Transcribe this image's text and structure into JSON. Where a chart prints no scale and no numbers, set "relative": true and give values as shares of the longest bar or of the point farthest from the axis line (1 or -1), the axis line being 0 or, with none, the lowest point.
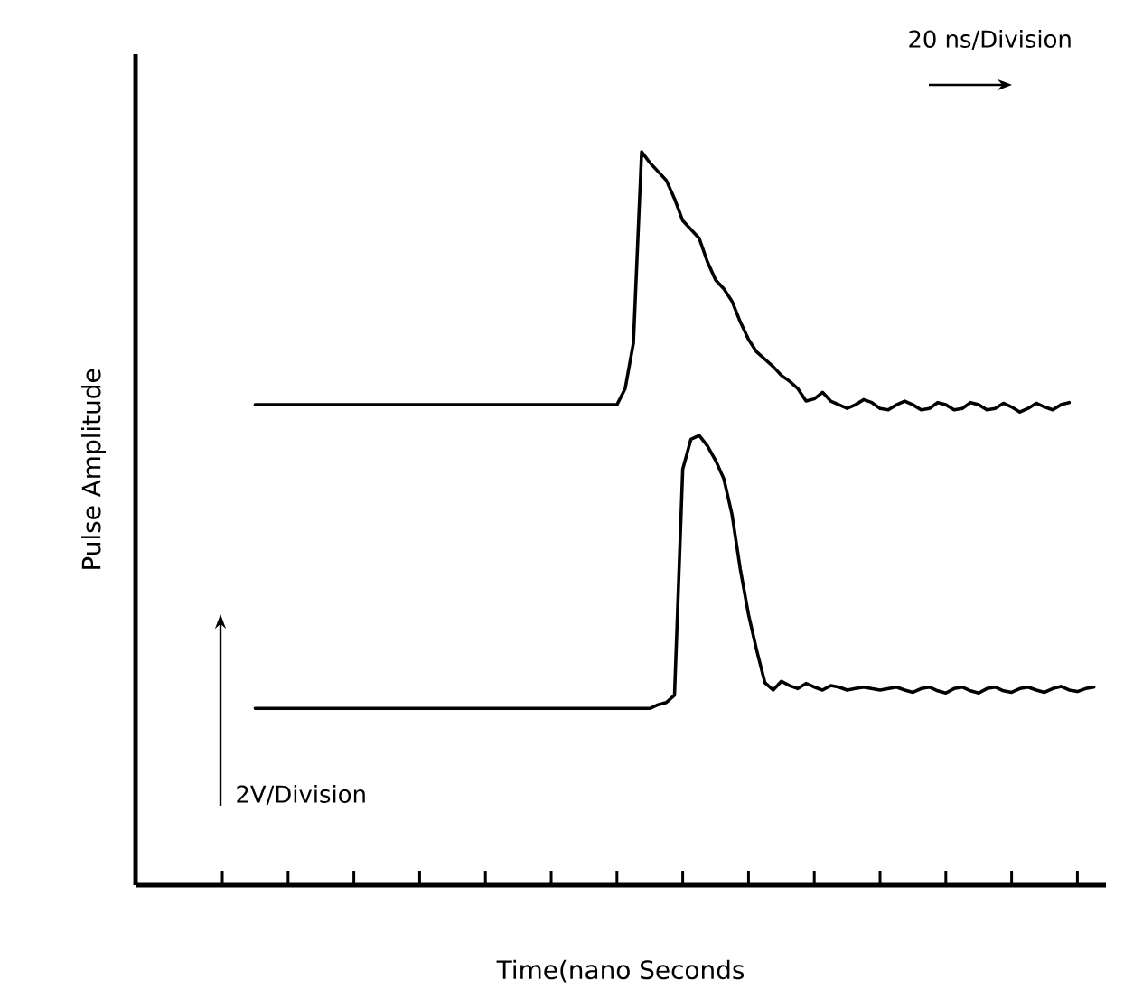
{
  "chart_data": {
    "type": "line",
    "relative": true,
    "xlabel": "Time(nano Seconds",
    "ylabel": "Pulse Amplitude",
    "annotations": [
      "20 ns/Division",
      "2V/Division"
    ],
    "marker": "none",
    "line_style": "solid",
    "categories": [
      null,
      null,
      null,
      null,
      null,
      null,
      null,
      null,
      null,
      null,
      null,
      null,
      null,
      null,
      null,
      null,
      null,
      null,
      null,
      null,
      null,
      null,
      null,
      null,
      null,
      null,
      null,
      null,
      null,
      null,
      null,
      null,
      null,
      null,
      null,
      null,
      null,
      null,
      null,
      null,
      null,
      null,
      null,
      null,
      null,
      null,
      null,
      null,
      null,
      null,
      null,
      null,
      null,
      null,
      null,
      null,
      null,
      null,
      null,
      null,
      null,
      null,
      null,
      null,
      null,
      null,
      null,
      null,
      null,
      null,
      null,
      null,
      null,
      null,
      null,
      null,
      null,
      null,
      null,
      null,
      null,
      null,
      null,
      null,
      null,
      null,
      null,
      null,
      null,
      null,
      null,
      null,
      null,
      null,
      null,
      null,
      null,
      null,
      null,
      null,
      null,
      null,
      null,
      null,
      null,
      null,
      null
    ],
    "series": [
      {
        "color": "#000000",
        "values": [
          null,
          null,
          null,
          null,
          0.655,
          0.655,
          0.655,
          0.655,
          0.655,
          0.655,
          0.655,
          0.655,
          0.655,
          0.655,
          0.655,
          0.655,
          0.655,
          0.655,
          0.655,
          0.655,
          0.655,
          0.655,
          0.655,
          0.655,
          0.655,
          0.655,
          0.655,
          0.655,
          0.655,
          0.655,
          0.655,
          0.655,
          0.655,
          0.655,
          0.655,
          0.655,
          0.655,
          0.655,
          0.655,
          0.655,
          0.655,
          0.655,
          0.655,
          0.655,
          0.655,
          0.655,
          0.655,
          0.655,
          0.655,
          0.677,
          0.739,
          1.0,
          0.985,
          0.973,
          0.961,
          0.936,
          0.906,
          0.894,
          0.882,
          0.85,
          0.825,
          0.813,
          0.796,
          0.768,
          0.744,
          0.727,
          0.717,
          0.707,
          0.695,
          0.687,
          0.677,
          0.66,
          0.663,
          0.672,
          0.66,
          0.655,
          0.65,
          0.655,
          0.662,
          0.658,
          0.65,
          0.648,
          0.655,
          0.66,
          0.655,
          0.648,
          0.65,
          0.658,
          0.655,
          0.648,
          0.65,
          0.658,
          0.655,
          0.648,
          0.65,
          0.657,
          0.652,
          0.645,
          0.65,
          0.657,
          0.652,
          0.648,
          0.655,
          0.658,
          null,
          null,
          null
        ]
      },
      {
        "color": "#000000",
        "values": [
          null,
          null,
          null,
          null,
          0.241,
          0.241,
          0.241,
          0.241,
          0.241,
          0.241,
          0.241,
          0.241,
          0.241,
          0.241,
          0.241,
          0.241,
          0.241,
          0.241,
          0.241,
          0.241,
          0.241,
          0.241,
          0.241,
          0.241,
          0.241,
          0.241,
          0.241,
          0.241,
          0.241,
          0.241,
          0.241,
          0.241,
          0.241,
          0.241,
          0.241,
          0.241,
          0.241,
          0.241,
          0.241,
          0.241,
          0.241,
          0.241,
          0.241,
          0.241,
          0.241,
          0.241,
          0.241,
          0.241,
          0.241,
          0.241,
          0.241,
          0.241,
          0.241,
          0.246,
          0.249,
          0.259,
          0.567,
          0.608,
          0.613,
          0.599,
          0.579,
          0.554,
          0.505,
          0.431,
          0.369,
          0.32,
          0.276,
          0.266,
          0.278,
          0.272,
          0.268,
          0.275,
          0.27,
          0.266,
          0.272,
          0.27,
          0.266,
          0.268,
          0.27,
          0.268,
          0.266,
          0.268,
          0.27,
          0.266,
          0.263,
          0.268,
          0.27,
          0.265,
          0.262,
          0.268,
          0.27,
          0.265,
          0.262,
          0.268,
          0.27,
          0.265,
          0.263,
          0.268,
          0.27,
          0.266,
          0.263,
          0.268,
          0.271,
          0.266,
          0.264,
          0.268,
          0.27
        ]
      }
    ]
  }
}
